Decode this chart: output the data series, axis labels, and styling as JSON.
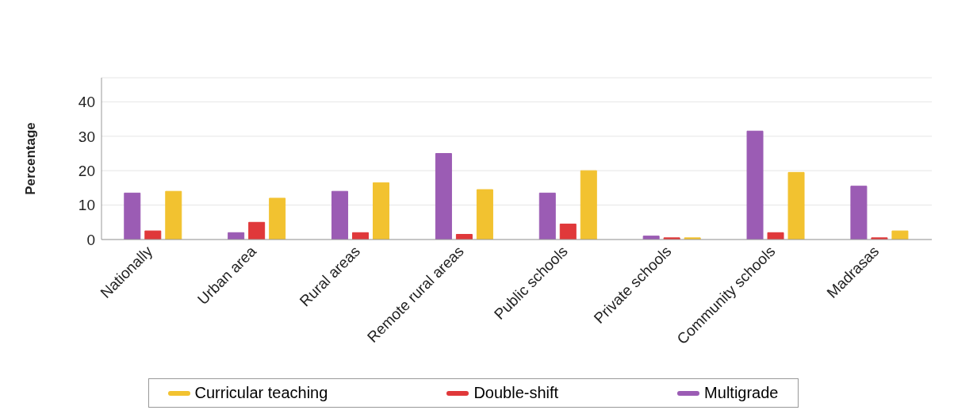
{
  "chart_data": {
    "type": "bar",
    "ylabel": "Percentage",
    "categories": [
      "Nationally",
      "Urban area",
      "Rural areas",
      "Remote rural areas",
      "Public schools",
      "Private schools",
      "Community schools",
      "Madrasas"
    ],
    "series": [
      {
        "name": "Multigrade",
        "color": "#9b5cb4",
        "values": [
          13.5,
          2,
          14,
          25,
          13.5,
          1,
          31.5,
          15.5
        ]
      },
      {
        "name": "Double-shift",
        "color": "#e0383a",
        "values": [
          2.5,
          5,
          2,
          1.5,
          4.5,
          0.5,
          2,
          0.5
        ]
      },
      {
        "name": "Curricular teaching",
        "color": "#f2c230",
        "values": [
          14,
          12,
          16.5,
          14.5,
          20,
          0.5,
          19.5,
          2.5
        ]
      }
    ],
    "ylim": [
      0,
      47
    ],
    "yticks": [
      0,
      10,
      20,
      30,
      40
    ],
    "grid": "y",
    "legend": "bottom"
  }
}
